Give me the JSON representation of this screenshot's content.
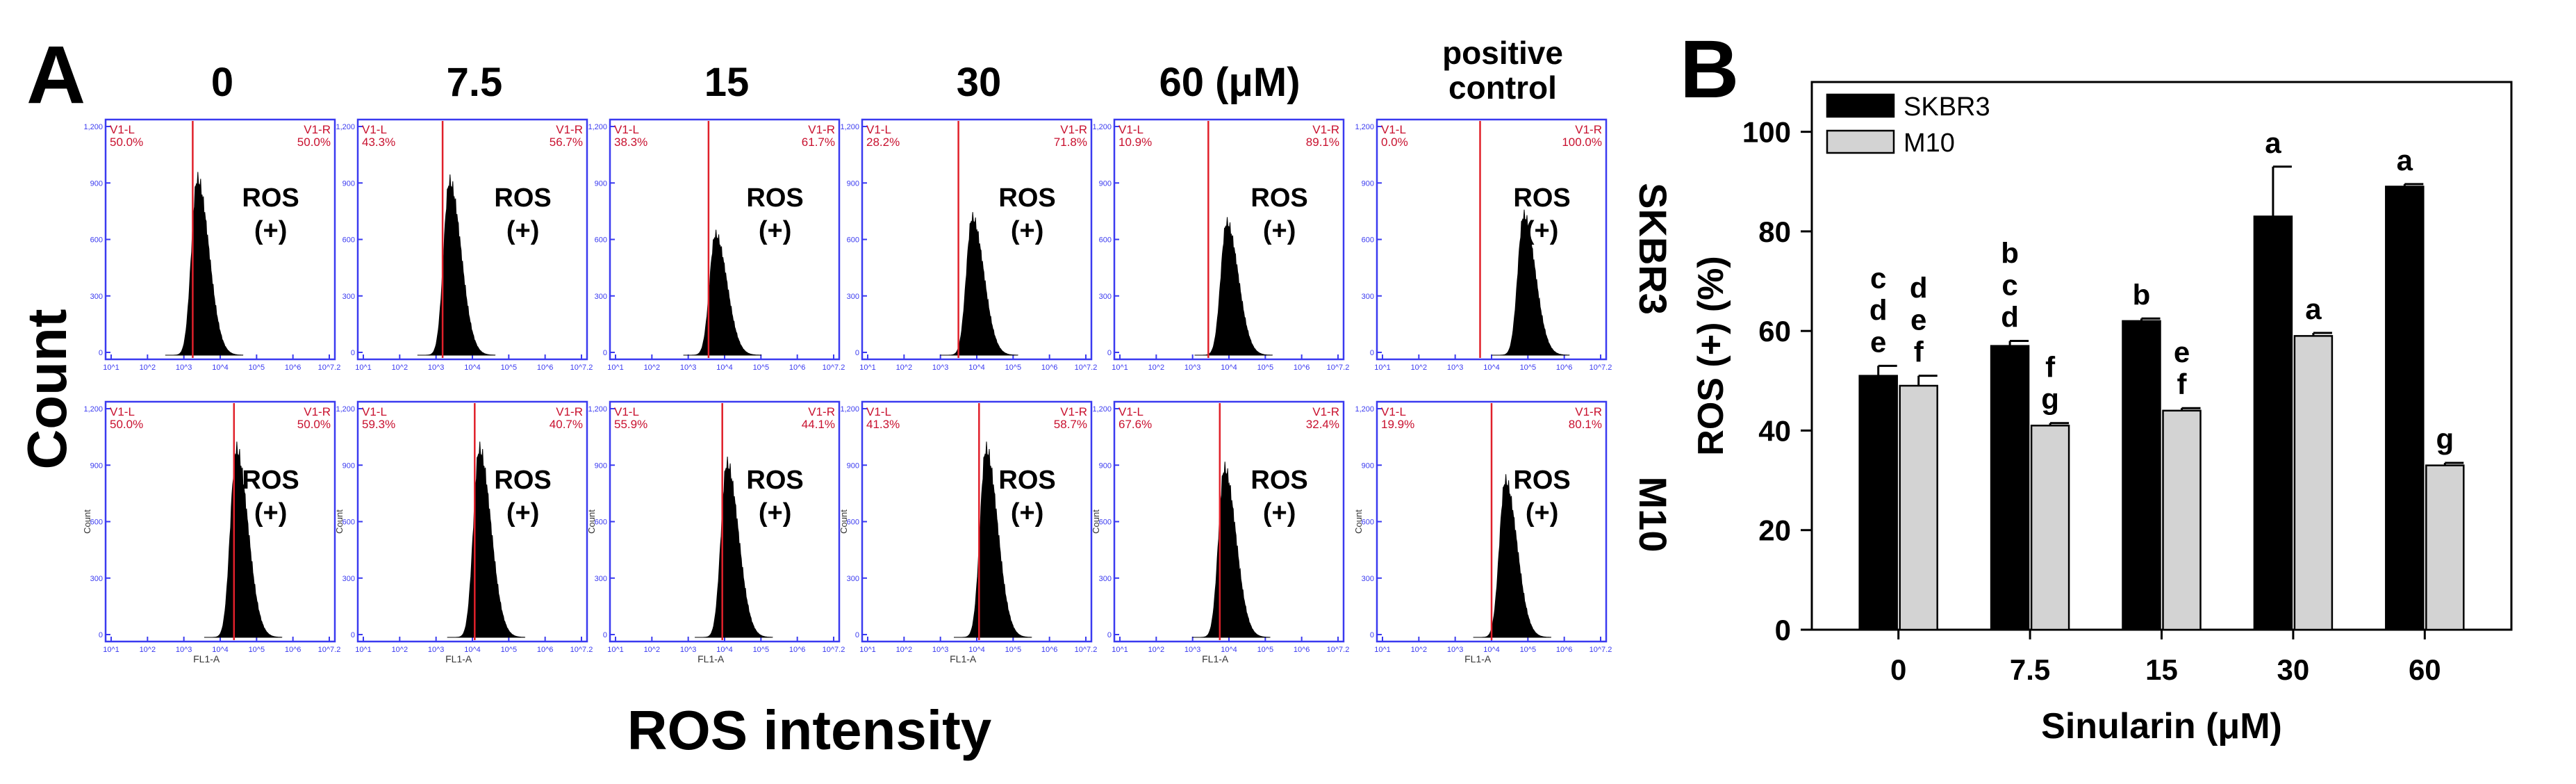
{
  "panel_a": {
    "letter": "A",
    "doses": [
      "0",
      "7.5",
      "15",
      "30",
      "60 (μM)"
    ],
    "positive_line1": "positive",
    "positive_line2": "control",
    "ylabel": "Count",
    "xlabel": "ROS intensity",
    "row_labels": [
      "SKBR3",
      "M10"
    ],
    "ros_line1": "ROS",
    "ros_line2": "(+)",
    "gate_left": "V1-L",
    "gate_right": "V1-R",
    "axis_label_x": "FL1-A",
    "axis_label_y": "Count",
    "y_ticks": [
      "1,200",
      "900",
      "600",
      "300",
      "0"
    ],
    "x_ticks": [
      "10^1",
      "10^2",
      "10^3",
      "10^4",
      "10^5",
      "10^6",
      "10^7.2"
    ],
    "rows": [
      {
        "cell": "SKBR3",
        "panels": [
          {
            "left_pct": "50.0%",
            "right_pct": "50.0%",
            "gate_pos": 0.38,
            "peak_pos": 0.4,
            "peak_height": 0.73
          },
          {
            "left_pct": "43.3%",
            "right_pct": "56.7%",
            "gate_pos": 0.37,
            "peak_pos": 0.4,
            "peak_height": 0.72
          },
          {
            "left_pct": "38.3%",
            "right_pct": "61.7%",
            "gate_pos": 0.43,
            "peak_pos": 0.46,
            "peak_height": 0.5
          },
          {
            "left_pct": "28.2%",
            "right_pct": "71.8%",
            "gate_pos": 0.42,
            "peak_pos": 0.48,
            "peak_height": 0.57
          },
          {
            "left_pct": "10.9%",
            "right_pct": "89.1%",
            "gate_pos": 0.41,
            "peak_pos": 0.49,
            "peak_height": 0.55
          },
          {
            "left_pct": "0.0%",
            "right_pct": "100.0%",
            "gate_pos": 0.45,
            "peak_pos": 0.64,
            "peak_height": 0.58
          }
        ]
      },
      {
        "cell": "M10",
        "panels": [
          {
            "left_pct": "50.0%",
            "right_pct": "50.0%",
            "gate_pos": 0.56,
            "peak_pos": 0.57,
            "peak_height": 0.78
          },
          {
            "left_pct": "59.3%",
            "right_pct": "40.7%",
            "gate_pos": 0.51,
            "peak_pos": 0.53,
            "peak_height": 0.78
          },
          {
            "left_pct": "55.9%",
            "right_pct": "44.1%",
            "gate_pos": 0.49,
            "peak_pos": 0.51,
            "peak_height": 0.72
          },
          {
            "left_pct": "41.3%",
            "right_pct": "58.7%",
            "gate_pos": 0.51,
            "peak_pos": 0.54,
            "peak_height": 0.78
          },
          {
            "left_pct": "67.6%",
            "right_pct": "32.4%",
            "gate_pos": 0.46,
            "peak_pos": 0.48,
            "peak_height": 0.7
          },
          {
            "left_pct": "19.9%",
            "right_pct": "80.1%",
            "gate_pos": 0.5,
            "peak_pos": 0.56,
            "peak_height": 0.65
          }
        ]
      }
    ]
  },
  "chart_data": {
    "type": "bar",
    "panel_letter": "B",
    "categories": [
      "0",
      "7.5",
      "15",
      "30",
      "60"
    ],
    "series": [
      {
        "name": "SKBR3",
        "color": "#000000",
        "values": [
          51,
          57,
          62,
          83,
          89
        ],
        "errors": [
          2,
          1,
          0.5,
          10,
          0.5
        ],
        "letters": [
          [
            "c",
            "d",
            "e"
          ],
          [
            "b",
            "c",
            "d"
          ],
          [
            "b"
          ],
          [
            "a"
          ],
          [
            "a"
          ]
        ]
      },
      {
        "name": "M10",
        "color": "#d3d3d3",
        "values": [
          49,
          41,
          44,
          59,
          33
        ],
        "errors": [
          2,
          0.5,
          0.5,
          0.6,
          0.5
        ],
        "letters": [
          [
            "d",
            "e",
            "f"
          ],
          [
            "f",
            "g"
          ],
          [
            "e",
            "f"
          ],
          [
            "a"
          ],
          [
            "g"
          ]
        ]
      }
    ],
    "xlabel": "Sinularin (μM)",
    "ylabel": "ROS (+) (%)",
    "ylim": [
      0,
      110
    ],
    "yticks": [
      0,
      20,
      40,
      60,
      80,
      100
    ],
    "legend_position": "top-left"
  }
}
